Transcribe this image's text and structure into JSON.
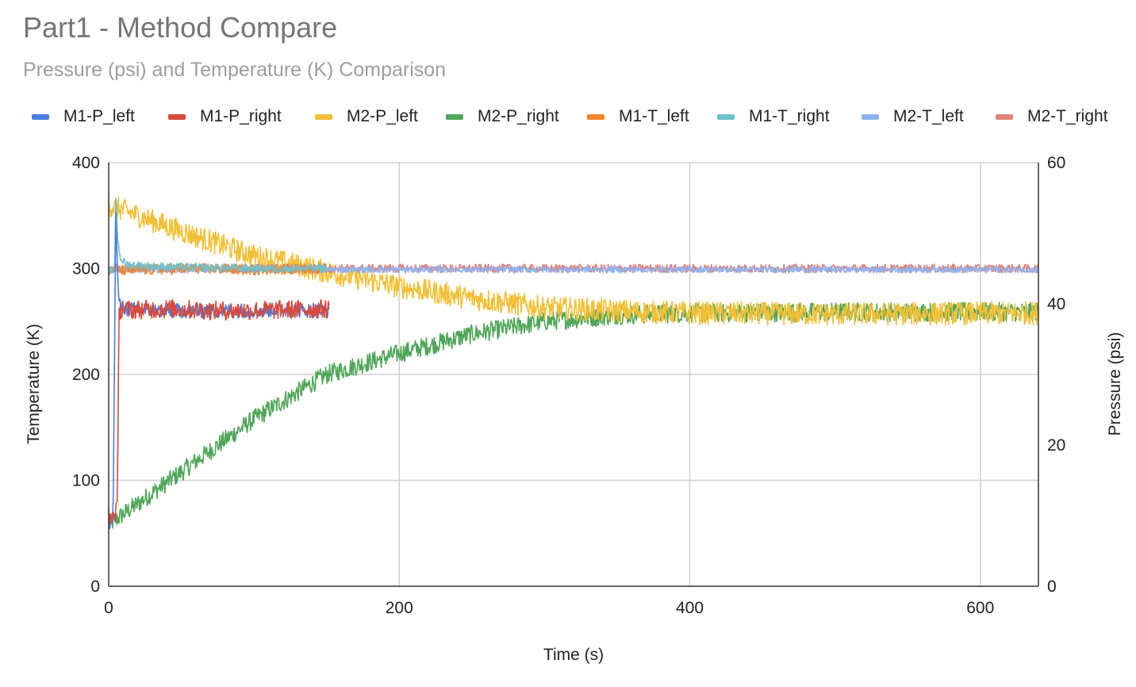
{
  "chart_data": {
    "type": "line",
    "title": "Part1 - Method Compare",
    "subtitle": "Pressure (psi) and Temperature (K) Comparison",
    "xlabel": "Time (s)",
    "ylabel_left": "Temperature (K)",
    "ylabel_right": "Pressure (psi)",
    "xlim": [
      0,
      640
    ],
    "ylim_left": [
      0,
      400
    ],
    "ylim_right": [
      0,
      60
    ],
    "xticks": [
      0,
      200,
      400,
      600
    ],
    "yticks_left": [
      0,
      100,
      200,
      300,
      400
    ],
    "yticks_right": [
      0,
      20,
      40,
      60
    ],
    "grid": true,
    "legend_position": "top",
    "series": [
      {
        "name": "M1-P_left",
        "color": "#4a7fe0",
        "axis": "left",
        "noise": 7,
        "points": [
          [
            0,
            60
          ],
          [
            3,
            62
          ],
          [
            5,
            360
          ],
          [
            6,
            300
          ],
          [
            7,
            268
          ],
          [
            10,
            262
          ],
          [
            20,
            261
          ],
          [
            40,
            260
          ],
          [
            80,
            260
          ],
          [
            120,
            261
          ],
          [
            152,
            260
          ]
        ]
      },
      {
        "name": "M1-P_right",
        "color": "#d94a3c",
        "axis": "left",
        "noise": 9,
        "points": [
          [
            0,
            65
          ],
          [
            4,
            68
          ],
          [
            6,
            72
          ],
          [
            7,
            255
          ],
          [
            8,
            262
          ],
          [
            12,
            261
          ],
          [
            40,
            262
          ],
          [
            80,
            260
          ],
          [
            120,
            261
          ],
          [
            152,
            262
          ]
        ]
      },
      {
        "name": "M2-P_left",
        "color": "#f2c037",
        "axis": "left",
        "noise": 11,
        "points": [
          [
            0,
            360
          ],
          [
            20,
            350
          ],
          [
            50,
            335
          ],
          [
            100,
            312
          ],
          [
            150,
            297
          ],
          [
            200,
            283
          ],
          [
            250,
            272
          ],
          [
            300,
            263
          ],
          [
            350,
            260
          ],
          [
            400,
            258
          ],
          [
            500,
            257
          ],
          [
            640,
            258
          ]
        ]
      },
      {
        "name": "M2-P_right",
        "color": "#4fa658",
        "axis": "left",
        "noise": 9,
        "points": [
          [
            0,
            58
          ],
          [
            20,
            78
          ],
          [
            50,
            108
          ],
          [
            100,
            158
          ],
          [
            150,
            200
          ],
          [
            200,
            220
          ],
          [
            250,
            238
          ],
          [
            300,
            250
          ],
          [
            350,
            256
          ],
          [
            400,
            258
          ],
          [
            500,
            259
          ],
          [
            640,
            259
          ]
        ]
      },
      {
        "name": "M1-T_left",
        "color": "#f2862a",
        "axis": "left",
        "noise": 5,
        "points": [
          [
            0,
            297
          ],
          [
            5,
            300
          ],
          [
            8,
            298
          ],
          [
            30,
            299
          ],
          [
            60,
            300
          ],
          [
            100,
            299
          ],
          [
            150,
            300
          ]
        ]
      },
      {
        "name": "M1-T_right",
        "color": "#6ec0cc",
        "axis": "left",
        "noise": 4,
        "points": [
          [
            0,
            297
          ],
          [
            4,
            298
          ],
          [
            5,
            370
          ],
          [
            6,
            330
          ],
          [
            8,
            310
          ],
          [
            12,
            304
          ],
          [
            30,
            302
          ],
          [
            60,
            301
          ],
          [
            100,
            300
          ],
          [
            150,
            300
          ]
        ]
      },
      {
        "name": "M2-T_left",
        "color": "#8fb3f2",
        "axis": "left",
        "noise": 3,
        "points": [
          [
            0,
            299
          ],
          [
            100,
            299
          ],
          [
            200,
            299
          ],
          [
            300,
            299
          ],
          [
            400,
            299
          ],
          [
            500,
            299
          ],
          [
            640,
            299
          ]
        ]
      },
      {
        "name": "M2-T_right",
        "color": "#e0837b",
        "axis": "left",
        "noise": 4,
        "points": [
          [
            0,
            300
          ],
          [
            100,
            300
          ],
          [
            200,
            300
          ],
          [
            300,
            300
          ],
          [
            400,
            300
          ],
          [
            500,
            300
          ],
          [
            640,
            300
          ]
        ]
      }
    ]
  }
}
